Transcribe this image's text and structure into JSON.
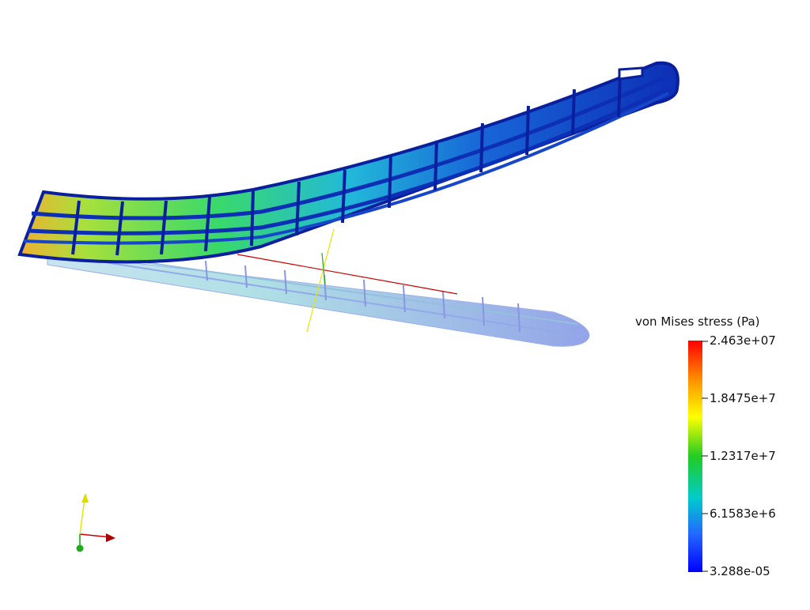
{
  "legend": {
    "title": "von Mises stress (Pa)",
    "ticks": [
      "2.463e+07",
      "1.8475e+7",
      "1.2317e+7",
      "6.1583e+6",
      "3.288e-05"
    ],
    "colormap": [
      "#ff0000",
      "#ff9900",
      "#ffff00",
      "#33cc33",
      "#00dddd",
      "#3388ff",
      "#0000ff"
    ]
  },
  "scene": {
    "deformed_wing_colors": [
      "#0a1f9e",
      "#1b4fd1",
      "#2ec6d6",
      "#6be24f",
      "#f3b33a"
    ],
    "undeformed_wing_color": "#3a56d8",
    "axes": {
      "x_axis_color": "#cc0000",
      "y_axis_color": "#e6e600",
      "z_axis_color": "#00aa00"
    }
  }
}
